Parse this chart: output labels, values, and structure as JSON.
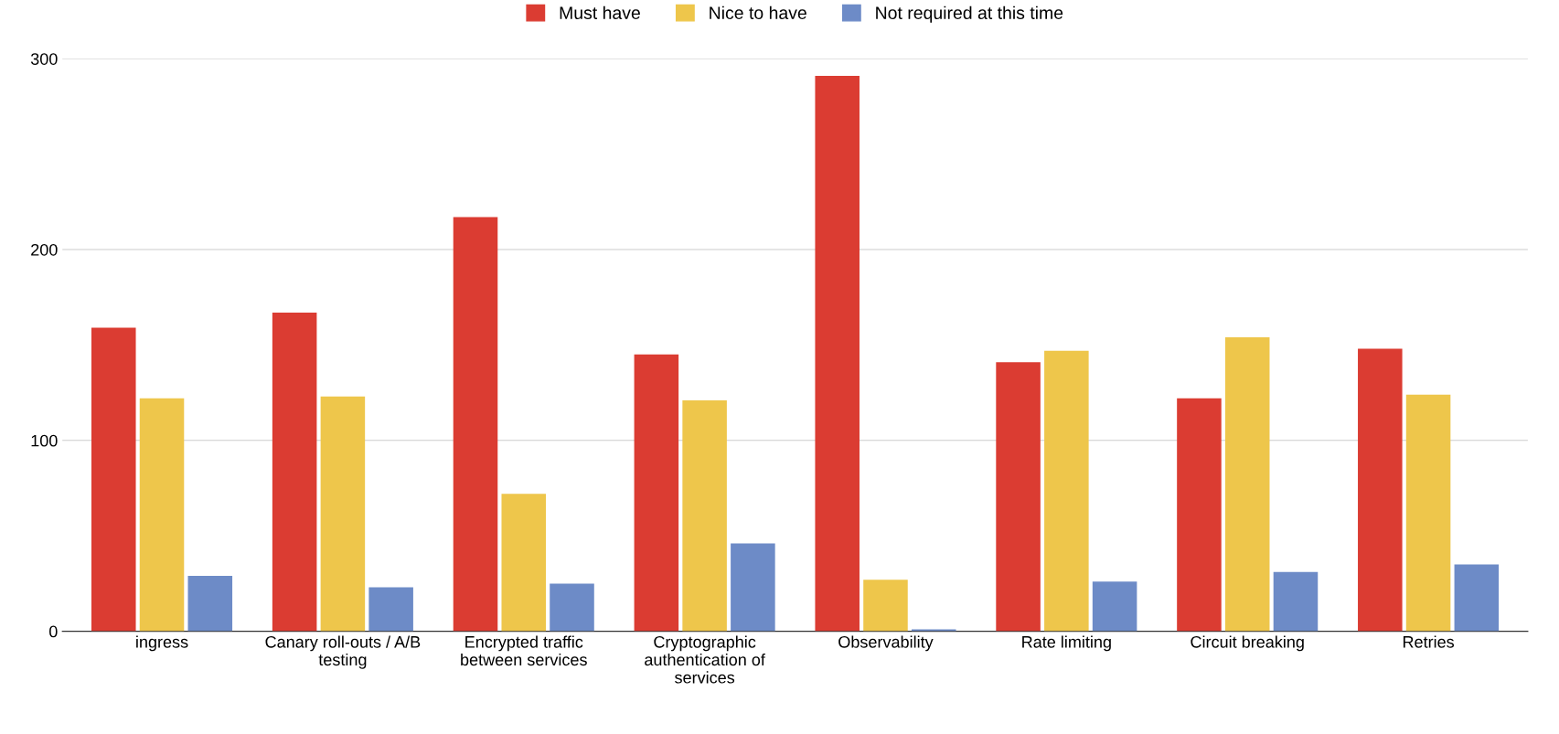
{
  "chart_data": {
    "type": "bar",
    "categories": [
      "ingress",
      "Canary roll-outs / A/B testing",
      "Encrypted traffic between services",
      "Cryptographic authentication of services",
      "Observability",
      "Rate limiting",
      "Circuit breaking",
      "Retries"
    ],
    "series": [
      {
        "name": "Must have",
        "color": "#db3c32",
        "values": [
          159,
          167,
          217,
          145,
          291,
          141,
          122,
          148
        ]
      },
      {
        "name": "Nice to have",
        "color": "#eec64b",
        "values": [
          122,
          123,
          72,
          121,
          27,
          147,
          154,
          124
        ]
      },
      {
        "name": "Not required at this time",
        "color": "#6d8bc7",
        "values": [
          29,
          23,
          25,
          46,
          1,
          26,
          31,
          35
        ]
      }
    ],
    "ylim": [
      0,
      300
    ],
    "yticks": [
      0,
      100,
      200,
      300
    ],
    "grid": "y",
    "legend": "top"
  }
}
